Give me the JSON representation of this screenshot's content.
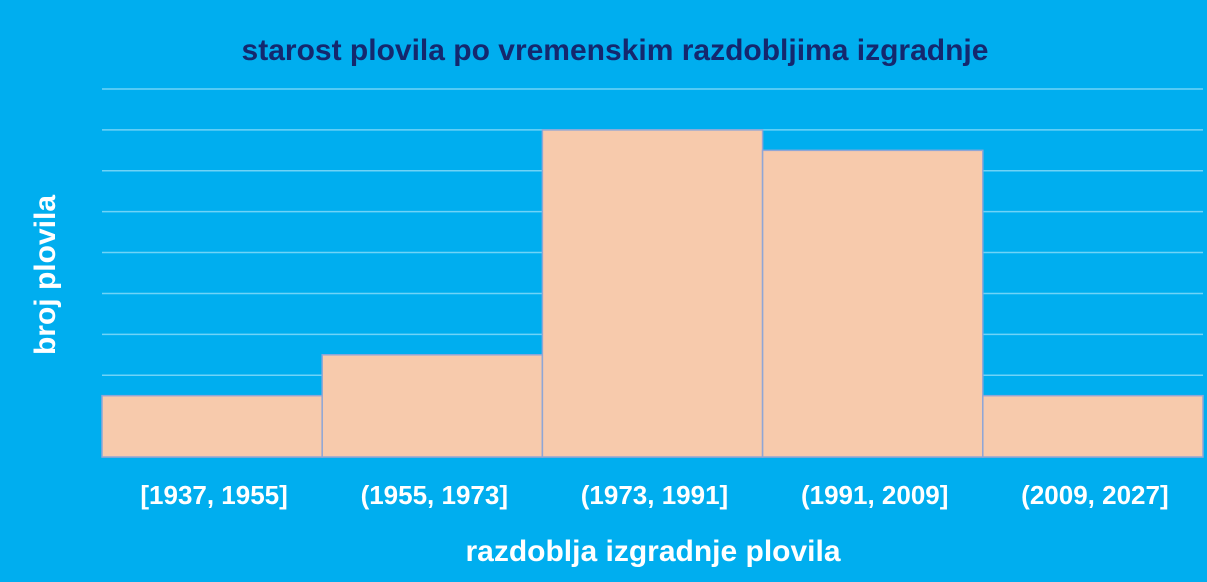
{
  "chart_data": {
    "type": "bar",
    "title": "starost plovila po vremenskim razdobljima izgradnje",
    "x_label": "razdoblja izgradnje plovila",
    "y_label": "broj plovila",
    "categories": [
      "[1937, 1955]",
      "(1955, 1973]",
      "(1973, 1991]",
      "(1991, 2009]",
      "(2009, 2027]"
    ],
    "values": [
      3,
      5,
      16,
      15,
      3
    ],
    "color": "#f7caac",
    "ylim": [
      0,
      18
    ],
    "yticks": [
      0,
      2,
      4,
      6,
      8,
      10,
      12,
      14,
      16,
      18
    ],
    "grid": true
  }
}
